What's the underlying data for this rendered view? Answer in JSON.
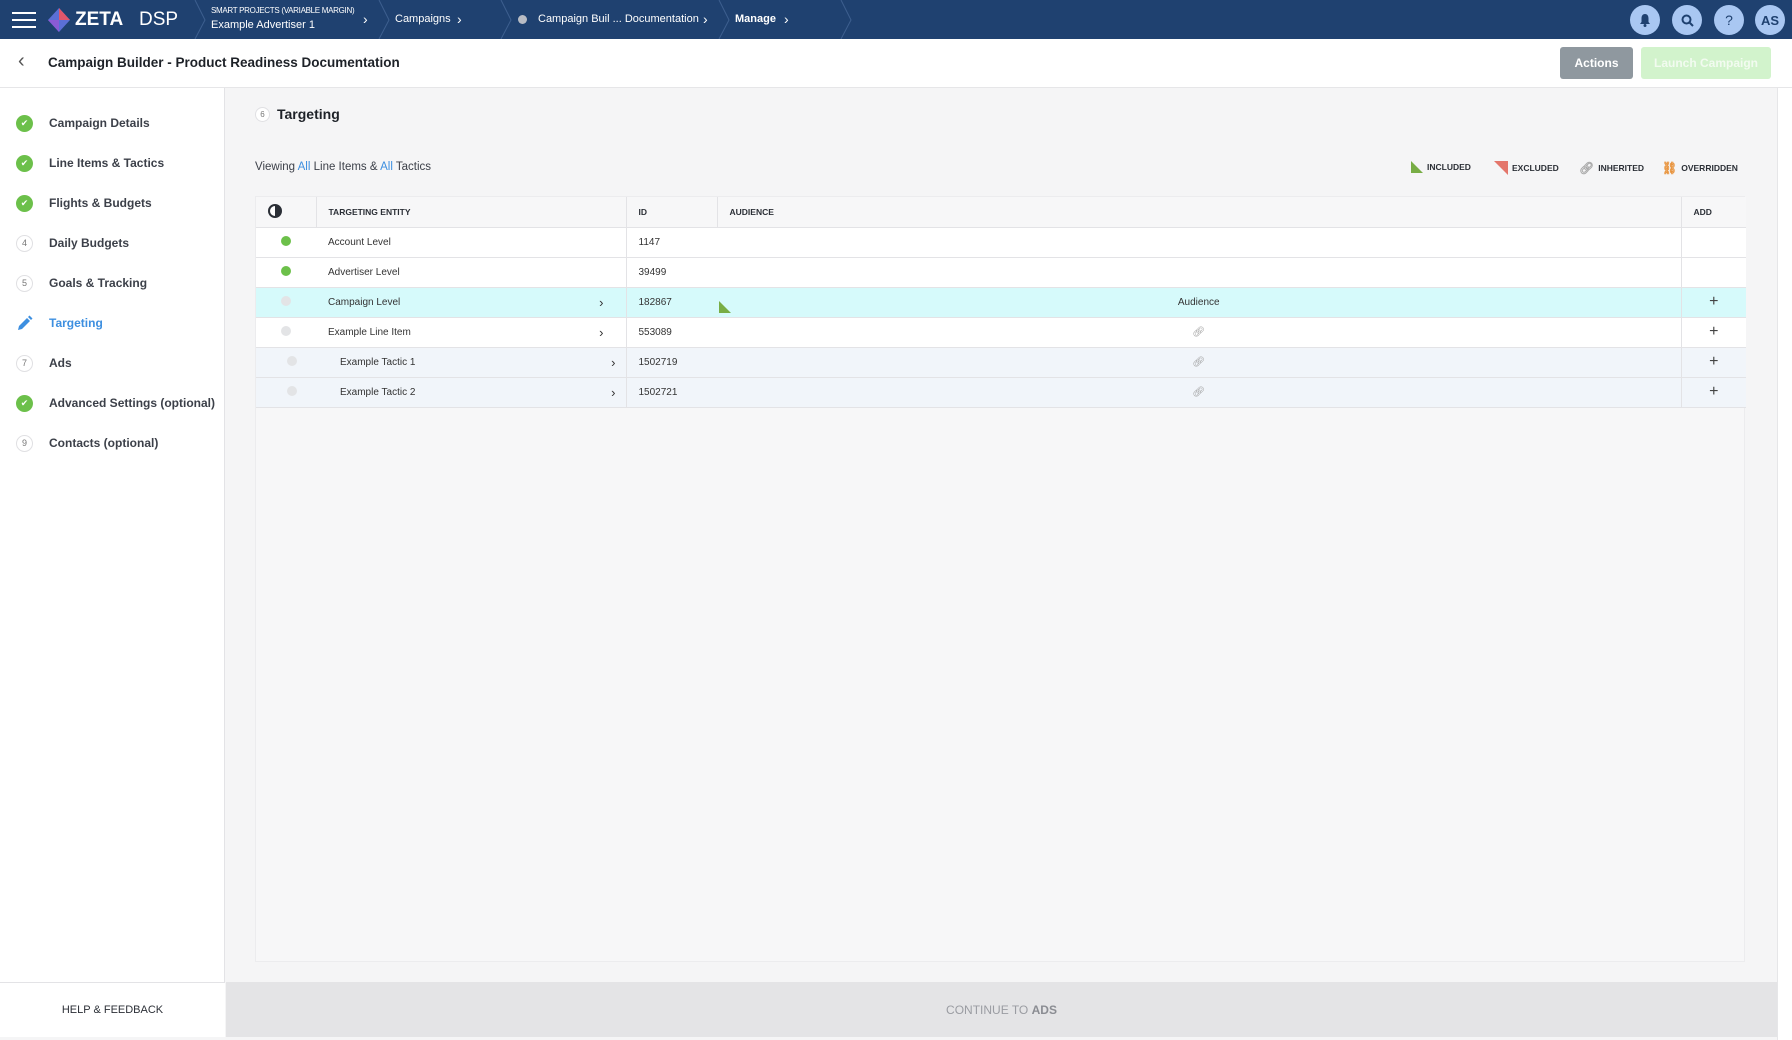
{
  "topbar": {
    "brand": "ZETA",
    "brand_suffix": "DSP",
    "breadcrumbs": [
      {
        "label": "SMART PROJECTS (VARIABLE MARGIN)",
        "sublabel": "Example Advertiser 1"
      },
      {
        "label": "Campaigns"
      },
      {
        "label": "Campaign Buil ... Documentation"
      },
      {
        "label": "Manage"
      }
    ],
    "icons": [
      "bell-icon",
      "search-icon",
      "help-icon"
    ],
    "help_glyph": "?",
    "avatar": "AS"
  },
  "header": {
    "title": "Campaign Builder - Product Readiness Documentation",
    "actions_label": "Actions",
    "launch_label": "Launch Campaign"
  },
  "sidebar": {
    "items": [
      {
        "label": "Campaign Details",
        "status": "done"
      },
      {
        "label": "Line Items & Tactics",
        "status": "done"
      },
      {
        "label": "Flights & Budgets",
        "status": "done"
      },
      {
        "label": "Daily Budgets",
        "status": "4"
      },
      {
        "label": "Goals & Tracking",
        "status": "5"
      },
      {
        "label": "Targeting",
        "status": "active"
      },
      {
        "label": "Ads",
        "status": "7"
      },
      {
        "label": "Advanced Settings (optional)",
        "status": "done"
      },
      {
        "label": "Contacts (optional)",
        "status": "9"
      }
    ],
    "footer": "HELP & FEEDBACK"
  },
  "main": {
    "step_number": "6",
    "section_title": "Targeting",
    "viewing": {
      "prefix": "Viewing",
      "all1": "All",
      "middle": "Line Items &",
      "all2": "All",
      "suffix": "Tactics"
    },
    "legend": {
      "included": "INCLUDED",
      "excluded": "EXCLUDED",
      "inherited": "INHERITED",
      "overridden": "OVERRIDDEN"
    },
    "table": {
      "headers": {
        "entity": "TARGETING ENTITY",
        "id": "ID",
        "audience": "AUDIENCE",
        "add": "ADD"
      },
      "rows": [
        {
          "entity": "Account Level",
          "id": "1147",
          "status": "active",
          "audience": "",
          "add": ""
        },
        {
          "entity": "Advertiser Level",
          "id": "39499",
          "status": "active",
          "audience": "",
          "add": ""
        },
        {
          "entity": "Campaign Level",
          "id": "182867",
          "status": "inactive",
          "audience": "Audience",
          "audience_state": "included",
          "add": "+"
        },
        {
          "entity": "Example Line Item",
          "id": "553089",
          "status": "inactive",
          "audience_state": "inherited",
          "add": "+"
        },
        {
          "entity": "Example Tactic 1",
          "id": "1502719",
          "status": "inactive",
          "audience_state": "inherited",
          "add": "+"
        },
        {
          "entity": "Example Tactic 2",
          "id": "1502721",
          "status": "inactive",
          "audience_state": "inherited",
          "add": "+"
        }
      ]
    },
    "continue": {
      "prefix": "CONTINUE TO",
      "target": "ADS"
    }
  },
  "colors": {
    "topbar": "#1f4170",
    "accent": "#3d8fe0",
    "success": "#6cc04a",
    "included": "#78ad45",
    "excluded": "#e4766b",
    "overridden": "#e8923a",
    "highlight_row": "#d6fafb"
  }
}
